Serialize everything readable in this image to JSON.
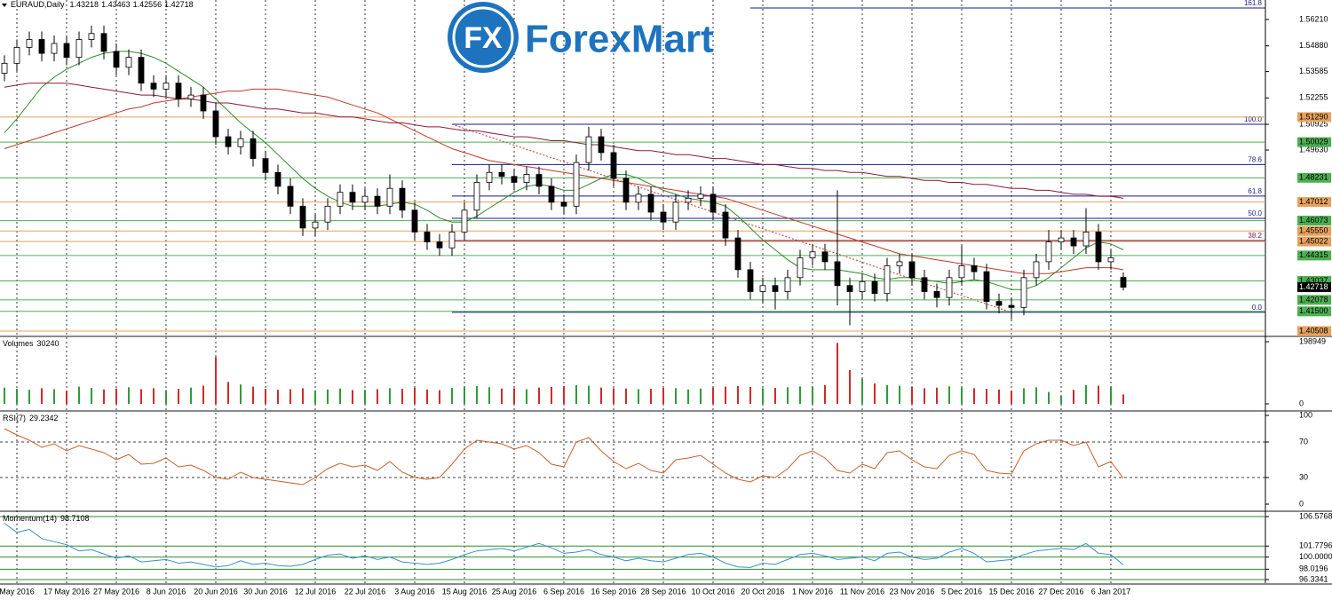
{
  "chart_data": [
    {
      "type": "candlestick",
      "title": "EURAUD,Daily",
      "watermark": "ForexMart",
      "logo_mark": "FX",
      "categories": [
        null,
        "May 2016",
        null,
        null,
        null,
        "17 May 2016",
        null,
        null,
        null,
        "27 May 2016",
        null,
        null,
        null,
        "8 Jun 2016",
        null,
        null,
        null,
        "20 Jun 2016",
        null,
        null,
        null,
        "30 Jun 2016",
        null,
        null,
        null,
        "12 Jul 2016",
        null,
        null,
        null,
        "22 Jul 2016",
        null,
        null,
        null,
        "3 Aug 2016",
        null,
        null,
        null,
        "15 Aug 2016",
        null,
        null,
        null,
        "25 Aug 2016",
        null,
        null,
        null,
        "6 Sep 2016",
        null,
        null,
        null,
        "16 Sep 2016",
        null,
        null,
        null,
        "28 Sep 2016",
        null,
        null,
        null,
        "10 Oct 2016",
        null,
        null,
        null,
        "20 Oct 2016",
        null,
        null,
        null,
        "1 Nov 2016",
        null,
        null,
        null,
        "11 Nov 2016",
        null,
        null,
        null,
        "23 Nov 2016",
        null,
        null,
        null,
        "5 Dec 2016",
        null,
        null,
        null,
        "15 Dec 2016",
        null,
        null,
        null,
        "27 Dec 2016",
        null,
        null,
        null,
        "6 Jan 2017",
        null
      ],
      "open": [
        1.535,
        1.54,
        1.548,
        1.552,
        1.545,
        1.55,
        1.543,
        1.552,
        1.555,
        1.546,
        1.538,
        1.543,
        1.53,
        1.527,
        1.53,
        1.522,
        1.524,
        1.516,
        1.503,
        1.498,
        1.502,
        1.492,
        1.485,
        1.478,
        1.468,
        1.457,
        1.46,
        1.468,
        1.475,
        1.47,
        1.473,
        1.468,
        1.477,
        1.466,
        1.455,
        1.45,
        1.447,
        1.455,
        1.466,
        1.48,
        1.485,
        1.483,
        1.48,
        1.484,
        1.478,
        1.47,
        1.468,
        1.49,
        1.503,
        1.495,
        1.482,
        1.47,
        1.474,
        1.465,
        1.46,
        1.47,
        1.472,
        1.474,
        1.465,
        1.452,
        1.436,
        1.425,
        1.428,
        1.425,
        1.432,
        1.442,
        1.445,
        1.44,
        1.428,
        1.425,
        1.43,
        1.424,
        1.438,
        1.44,
        1.432,
        1.425,
        1.422,
        1.432,
        1.438,
        1.435,
        1.42,
        1.418,
        1.417,
        1.432,
        1.44,
        1.45,
        1.452,
        1.448,
        1.455,
        1.44,
        1.43218
      ],
      "high": [
        1.544,
        1.552,
        1.556,
        1.556,
        1.554,
        1.554,
        1.556,
        1.559,
        1.559,
        1.55,
        1.547,
        1.547,
        1.534,
        1.534,
        1.534,
        1.528,
        1.528,
        1.52,
        1.507,
        1.506,
        1.506,
        1.496,
        1.489,
        1.482,
        1.472,
        1.464,
        1.472,
        1.479,
        1.479,
        1.477,
        1.477,
        1.484,
        1.481,
        1.47,
        1.459,
        1.454,
        1.459,
        1.47,
        1.484,
        1.489,
        1.489,
        1.487,
        1.488,
        1.488,
        1.482,
        1.474,
        1.494,
        1.508,
        1.507,
        1.499,
        1.486,
        1.478,
        1.478,
        1.469,
        1.474,
        1.476,
        1.478,
        1.478,
        1.469,
        1.456,
        1.44,
        1.432,
        1.432,
        1.436,
        1.446,
        1.449,
        1.449,
        1.476,
        1.432,
        1.434,
        1.434,
        1.442,
        1.444,
        1.444,
        1.436,
        1.429,
        1.436,
        1.448,
        1.442,
        1.439,
        1.424,
        1.422,
        1.436,
        1.444,
        1.456,
        1.456,
        1.456,
        1.467,
        1.459,
        1.446,
        1.43463
      ],
      "low": [
        1.531,
        1.536,
        1.544,
        1.541,
        1.541,
        1.539,
        1.539,
        1.548,
        1.542,
        1.534,
        1.534,
        1.526,
        1.523,
        1.523,
        1.518,
        1.518,
        1.512,
        1.499,
        1.494,
        1.494,
        1.488,
        1.481,
        1.474,
        1.464,
        1.453,
        1.453,
        1.456,
        1.464,
        1.466,
        1.466,
        1.464,
        1.464,
        1.462,
        1.451,
        1.446,
        1.443,
        1.443,
        1.451,
        1.462,
        1.476,
        1.479,
        1.476,
        1.476,
        1.474,
        1.466,
        1.464,
        1.464,
        1.486,
        1.491,
        1.478,
        1.466,
        1.466,
        1.461,
        1.456,
        1.456,
        1.466,
        1.468,
        1.461,
        1.448,
        1.432,
        1.421,
        1.419,
        1.416,
        1.421,
        1.428,
        1.438,
        1.436,
        1.418,
        1.408,
        1.421,
        1.42,
        1.42,
        1.434,
        1.428,
        1.421,
        1.417,
        1.418,
        1.428,
        1.431,
        1.416,
        1.414,
        1.411,
        1.413,
        1.428,
        1.436,
        1.446,
        1.444,
        1.444,
        1.436,
        1.436,
        1.42556
      ],
      "close": [
        1.54,
        1.548,
        1.552,
        1.545,
        1.55,
        1.543,
        1.552,
        1.555,
        1.546,
        1.538,
        1.543,
        1.53,
        1.527,
        1.53,
        1.522,
        1.524,
        1.516,
        1.503,
        1.498,
        1.502,
        1.492,
        1.485,
        1.478,
        1.468,
        1.457,
        1.46,
        1.468,
        1.475,
        1.47,
        1.473,
        1.468,
        1.477,
        1.466,
        1.455,
        1.45,
        1.447,
        1.455,
        1.466,
        1.48,
        1.485,
        1.483,
        1.48,
        1.484,
        1.478,
        1.47,
        1.468,
        1.49,
        1.503,
        1.495,
        1.482,
        1.47,
        1.474,
        1.465,
        1.46,
        1.47,
        1.472,
        1.474,
        1.465,
        1.452,
        1.436,
        1.425,
        1.428,
        1.425,
        1.432,
        1.442,
        1.445,
        1.44,
        1.428,
        1.425,
        1.43,
        1.424,
        1.438,
        1.44,
        1.432,
        1.425,
        1.422,
        1.432,
        1.438,
        1.435,
        1.42,
        1.418,
        1.417,
        1.432,
        1.44,
        1.45,
        1.452,
        1.448,
        1.455,
        1.44,
        1.442,
        1.42718
      ],
      "up_color": "#ffffff",
      "down_color": "#000000",
      "lines": [
        {
          "color": "#2e8b2e",
          "values": [
            1.505,
            1.512,
            1.52,
            1.528,
            1.533,
            1.537,
            1.54,
            1.543,
            1.545,
            1.546,
            1.546,
            1.545,
            1.543,
            1.54,
            1.536,
            1.532,
            1.528,
            1.522,
            1.516,
            1.51,
            1.505,
            1.5,
            1.494,
            1.488,
            1.482,
            1.477,
            1.473,
            1.47,
            1.468,
            1.468,
            1.468,
            1.469,
            1.47,
            1.469,
            1.466,
            1.462,
            1.46,
            1.46,
            1.463,
            1.467,
            1.471,
            1.475,
            1.478,
            1.479,
            1.478,
            1.476,
            1.476,
            1.479,
            1.482,
            1.484,
            1.484,
            1.482,
            1.479,
            1.476,
            1.474,
            1.472,
            1.471,
            1.47,
            1.468,
            1.463,
            1.457,
            1.451,
            1.446,
            1.441,
            1.437,
            1.436,
            1.436,
            1.436,
            1.435,
            1.434,
            1.432,
            1.431,
            1.432,
            1.432,
            1.431,
            1.43,
            1.429,
            1.43,
            1.431,
            1.43,
            1.428,
            1.426,
            1.426,
            1.428,
            1.432,
            1.437,
            1.442,
            1.447,
            1.45,
            1.449,
            1.446
          ]
        },
        {
          "color": "#c0392b",
          "values": [
            1.497,
            1.499,
            1.501,
            1.503,
            1.505,
            1.507,
            1.509,
            1.511,
            1.513,
            1.515,
            1.517,
            1.518,
            1.52,
            1.521,
            1.522,
            1.523,
            1.524,
            1.525,
            1.526,
            1.526,
            1.527,
            1.527,
            1.527,
            1.526,
            1.525,
            1.524,
            1.523,
            1.521,
            1.519,
            1.517,
            1.515,
            1.512,
            1.509,
            1.506,
            1.503,
            1.5,
            1.497,
            1.495,
            1.493,
            1.491,
            1.49,
            1.489,
            1.488,
            1.487,
            1.486,
            1.485,
            1.484,
            1.483,
            1.482,
            1.481,
            1.48,
            1.479,
            1.478,
            1.477,
            1.476,
            1.475,
            1.474,
            1.473,
            1.472,
            1.47,
            1.468,
            1.466,
            1.464,
            1.462,
            1.46,
            1.458,
            1.456,
            1.454,
            1.452,
            1.45,
            1.448,
            1.446,
            1.444,
            1.443,
            1.442,
            1.441,
            1.44,
            1.439,
            1.438,
            1.437,
            1.436,
            1.435,
            1.434,
            1.434,
            1.434,
            1.435,
            1.436,
            1.437,
            1.437,
            1.437,
            1.436
          ]
        },
        {
          "color": "#8b1a3a",
          "values": [
            1.528,
            1.529,
            1.53,
            1.53,
            1.53,
            1.53,
            1.529,
            1.528,
            1.527,
            1.526,
            1.525,
            1.524,
            1.524,
            1.523,
            1.522,
            1.522,
            1.521,
            1.52,
            1.52,
            1.519,
            1.518,
            1.517,
            1.517,
            1.516,
            1.515,
            1.515,
            1.514,
            1.513,
            1.513,
            1.512,
            1.511,
            1.51,
            1.51,
            1.509,
            1.508,
            1.508,
            1.507,
            1.506,
            1.506,
            1.505,
            1.504,
            1.503,
            1.503,
            1.502,
            1.501,
            1.501,
            1.5,
            1.499,
            1.499,
            1.498,
            1.497,
            1.496,
            1.496,
            1.495,
            1.494,
            1.494,
            1.493,
            1.492,
            1.492,
            1.491,
            1.49,
            1.489,
            1.489,
            1.488,
            1.487,
            1.487,
            1.486,
            1.486,
            1.485,
            1.485,
            1.484,
            1.483,
            1.483,
            1.482,
            1.481,
            1.481,
            1.48,
            1.48,
            1.479,
            1.479,
            1.478,
            1.477,
            1.477,
            1.476,
            1.476,
            1.475,
            1.474,
            1.474,
            1.473,
            1.473,
            1.472
          ]
        }
      ],
      "ylim": [
        1.40284,
        1.5719
      ],
      "yticks": [
        {
          "value": 1.5621,
          "label": "1.56210"
        },
        {
          "value": 1.5488,
          "label": "1.54880"
        },
        1.53585,
        1.52255,
        1.50925,
        {
          "value": 1.4963,
          "label": "1.49630"
        }
      ],
      "levels": [
        {
          "value": 1.5129,
          "label": "1.51290",
          "color": "#e6a15c"
        },
        {
          "value": 1.50029,
          "label": "1.50029",
          "color": "#4caf50"
        },
        {
          "value": 1.48231,
          "label": "1.48231",
          "color": "#4caf50"
        },
        {
          "value": 1.47012,
          "label": "1.47012",
          "color": "#e6a15c"
        },
        {
          "value": 1.46073,
          "label": "1.46073",
          "color": "#4caf50"
        },
        {
          "value": 1.4555,
          "label": "1.45550",
          "color": "#e6a15c"
        },
        {
          "value": 1.45022,
          "label": "1.45022",
          "color": "#e6a15c"
        },
        {
          "value": 1.44315,
          "label": "1.44315",
          "color": "#4caf50"
        },
        {
          "value": 1.43037,
          "label": "1.43037",
          "color": "#4caf50"
        },
        {
          "value": 1.42078,
          "label": "1.42078",
          "color": "#4caf50"
        },
        {
          "value": 1.415,
          "label": "1.41500",
          "color": "#4caf50"
        },
        {
          "value": 1.40508,
          "label": "1.40508",
          "color": "#e6a15c"
        }
      ],
      "fibonacci": {
        "color": "#1a1a8c",
        "levels": [
          {
            "label": "161.8",
            "price": 1.5679
          },
          {
            "label": "100.0",
            "price": 1.5093
          },
          {
            "label": "78.6",
            "price": 1.489
          },
          {
            "label": "61.8",
            "price": 1.4731
          },
          {
            "label": "50.0",
            "price": 1.4619
          },
          {
            "label": "38.2",
            "price": 1.4507
          },
          {
            "label": "0.0",
            "price": 1.4145
          }
        ]
      }
    },
    {
      "type": "volume",
      "name": "Volumes",
      "values": [
        52000,
        48000,
        45000,
        50000,
        47000,
        42000,
        55000,
        51000,
        46000,
        49000,
        53000,
        47000,
        50000,
        44000,
        48000,
        52000,
        58000,
        150000,
        70000,
        62000,
        55000,
        48000,
        45000,
        47000,
        50000,
        43000,
        46000,
        49000,
        44000,
        45000,
        47000,
        50000,
        48000,
        52000,
        46000,
        44000,
        51000,
        55000,
        57000,
        53000,
        49000,
        50000,
        47000,
        52000,
        54000,
        56000,
        60000,
        58000,
        52000,
        50000,
        49000,
        47000,
        48000,
        51000,
        50000,
        46000,
        49000,
        52000,
        55000,
        57000,
        54000,
        50000,
        51000,
        53000,
        56000,
        55000,
        60000,
        195000,
        108000,
        80000,
        65000,
        60000,
        58000,
        54000,
        50000,
        52000,
        56000,
        53000,
        50000,
        48000,
        46000,
        42000,
        50000,
        53000,
        38000,
        25000,
        45000,
        60000,
        58000,
        55000,
        30240
      ],
      "up_color": "#2e9b3a",
      "down_color": "#d02a2a",
      "ylim": [
        -19900,
        213160
      ],
      "yticks": [
        0,
        198949
      ]
    },
    {
      "type": "line",
      "name": "RSI(7)",
      "color": "#c8602a",
      "values": [
        85,
        78,
        72,
        64,
        68,
        60,
        66,
        62,
        58,
        50,
        56,
        45,
        46,
        52,
        42,
        44,
        38,
        30,
        28,
        36,
        30,
        28,
        26,
        24,
        22,
        30,
        40,
        46,
        42,
        44,
        38,
        48,
        36,
        30,
        28,
        30,
        45,
        62,
        72,
        70,
        68,
        62,
        66,
        58,
        45,
        42,
        70,
        75,
        60,
        48,
        40,
        46,
        38,
        35,
        50,
        52,
        55,
        45,
        35,
        28,
        25,
        32,
        30,
        40,
        55,
        60,
        52,
        38,
        35,
        45,
        40,
        58,
        60,
        50,
        42,
        40,
        55,
        60,
        56,
        38,
        35,
        34,
        60,
        68,
        72,
        72,
        66,
        70,
        42,
        48,
        29.2342
      ],
      "ylim": [
        -7,
        104
      ],
      "yticks": [
        0,
        30,
        70,
        100
      ]
    },
    {
      "type": "line",
      "name": "Momentum(14)",
      "color": "#3a8fd0",
      "level_color": "#2e8b2e",
      "values": [
        105.5,
        104,
        104.5,
        103,
        102.5,
        102,
        101,
        101.2,
        100.5,
        99.8,
        100.2,
        99.2,
        99.4,
        99.6,
        99.0,
        99.2,
        98.8,
        98.4,
        98.6,
        99.4,
        98.8,
        99,
        98.6,
        98.5,
        98.8,
        99.6,
        100.3,
        100.5,
        99.8,
        100.2,
        99.6,
        100,
        99.2,
        99.0,
        98.8,
        99.0,
        99.6,
        100.4,
        101,
        101.2,
        101.4,
        101,
        101.6,
        102.2,
        101.5,
        100.6,
        100.8,
        101.2,
        100.4,
        100,
        99.4,
        99.8,
        99.4,
        99.2,
        99.8,
        100.4,
        100.6,
        100,
        99,
        98.4,
        98.3,
        99,
        98.8,
        99.6,
        100.4,
        100.6,
        100.2,
        99.6,
        99.8,
        100,
        99.4,
        100.6,
        100.8,
        100,
        99.6,
        99.8,
        100.8,
        101.4,
        100.6,
        99.2,
        99.4,
        99.6,
        100.4,
        101,
        101.2,
        101.4,
        101.2,
        102.2,
        100.6,
        100.4,
        98.7108
      ],
      "ylim": [
        95.757,
        107.3
      ],
      "yticks": [
        106.5768,
        101.7796,
        {
          "value": 100,
          "label": "100.0000"
        },
        98.0196,
        96.3341
      ]
    }
  ]
}
